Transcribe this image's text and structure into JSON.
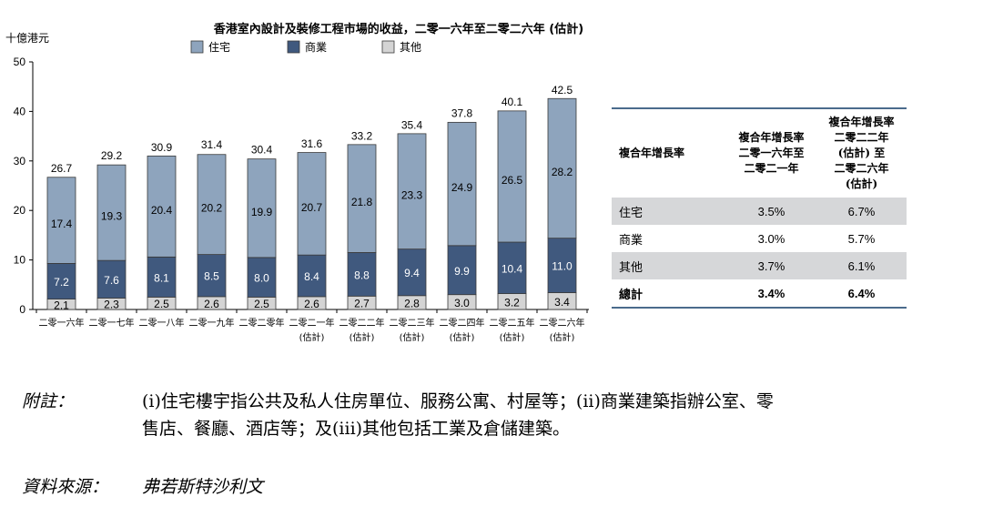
{
  "chart_data": {
    "type": "bar",
    "stacked": true,
    "title": "香港室內設計及裝修工程市場的收益，二零一六年至二零二六年 (估計)",
    "ylabel": "十億港元",
    "ylim": [
      0,
      50
    ],
    "yticks": [
      "0",
      "10",
      "20",
      "30",
      "40",
      "50"
    ],
    "categories": [
      {
        "line1": "二零一六年",
        "line2": ""
      },
      {
        "line1": "二零一七年",
        "line2": ""
      },
      {
        "line1": "二零一八年",
        "line2": ""
      },
      {
        "line1": "二零一九年",
        "line2": ""
      },
      {
        "line1": "二零二零年",
        "line2": ""
      },
      {
        "line1": "二零二一年",
        "line2": "(估計)"
      },
      {
        "line1": "二零二二年",
        "line2": "(估計)"
      },
      {
        "line1": "二零二三年",
        "line2": "(估計)"
      },
      {
        "line1": "二零二四年",
        "line2": "(估計)"
      },
      {
        "line1": "二零二五年",
        "line2": "(估計)"
      },
      {
        "line1": "二零二六年",
        "line2": "(估計)"
      }
    ],
    "series": [
      {
        "name": "其他",
        "color": "#d4d4d4",
        "values": [
          2.1,
          2.3,
          2.5,
          2.6,
          2.5,
          2.6,
          2.7,
          2.8,
          3.0,
          3.2,
          3.4
        ]
      },
      {
        "name": "商業",
        "color": "#40597e",
        "values": [
          7.2,
          7.6,
          8.1,
          8.5,
          8.0,
          8.4,
          8.8,
          9.4,
          9.9,
          10.4,
          11.0
        ]
      },
      {
        "name": "住宅",
        "color": "#8ea4bd",
        "values": [
          17.4,
          19.3,
          20.4,
          20.2,
          19.9,
          20.7,
          21.8,
          23.3,
          24.9,
          26.5,
          28.2
        ]
      }
    ],
    "totals": [
      26.7,
      29.2,
      30.9,
      31.4,
      30.4,
      31.6,
      33.2,
      35.4,
      37.8,
      40.1,
      42.5
    ],
    "legend_order": [
      "住宅",
      "商業",
      "其他"
    ],
    "legend_placement": "top-center"
  },
  "table": {
    "header": {
      "col1": "複合年增長率",
      "col2": [
        "複合年增長率",
        "二零一六年至",
        "二零二一年"
      ],
      "col3": [
        "複合年增長率",
        "二零二二年",
        "(估計) 至",
        "二零二六年",
        "(估計)"
      ]
    },
    "rows": [
      {
        "label": "住宅",
        "a": "3.5%",
        "b": "6.7%"
      },
      {
        "label": "商業",
        "a": "3.0%",
        "b": "5.7%"
      },
      {
        "label": "其他",
        "a": "3.7%",
        "b": "6.1%"
      },
      {
        "label": "總計",
        "a": "3.4%",
        "b": "6.4%"
      }
    ]
  },
  "notes": {
    "note_label": "附註：",
    "note_line1": "(i)住宅樓宇指公共及私人住房單位、服務公寓、村屋等；(ii)商業建築指辦公室、零",
    "note_line2": "售店、餐廳、酒店等；及(iii)其他包括工業及倉儲建築。",
    "source_label": "資料來源：",
    "source_text": "弗若斯特沙利文"
  }
}
